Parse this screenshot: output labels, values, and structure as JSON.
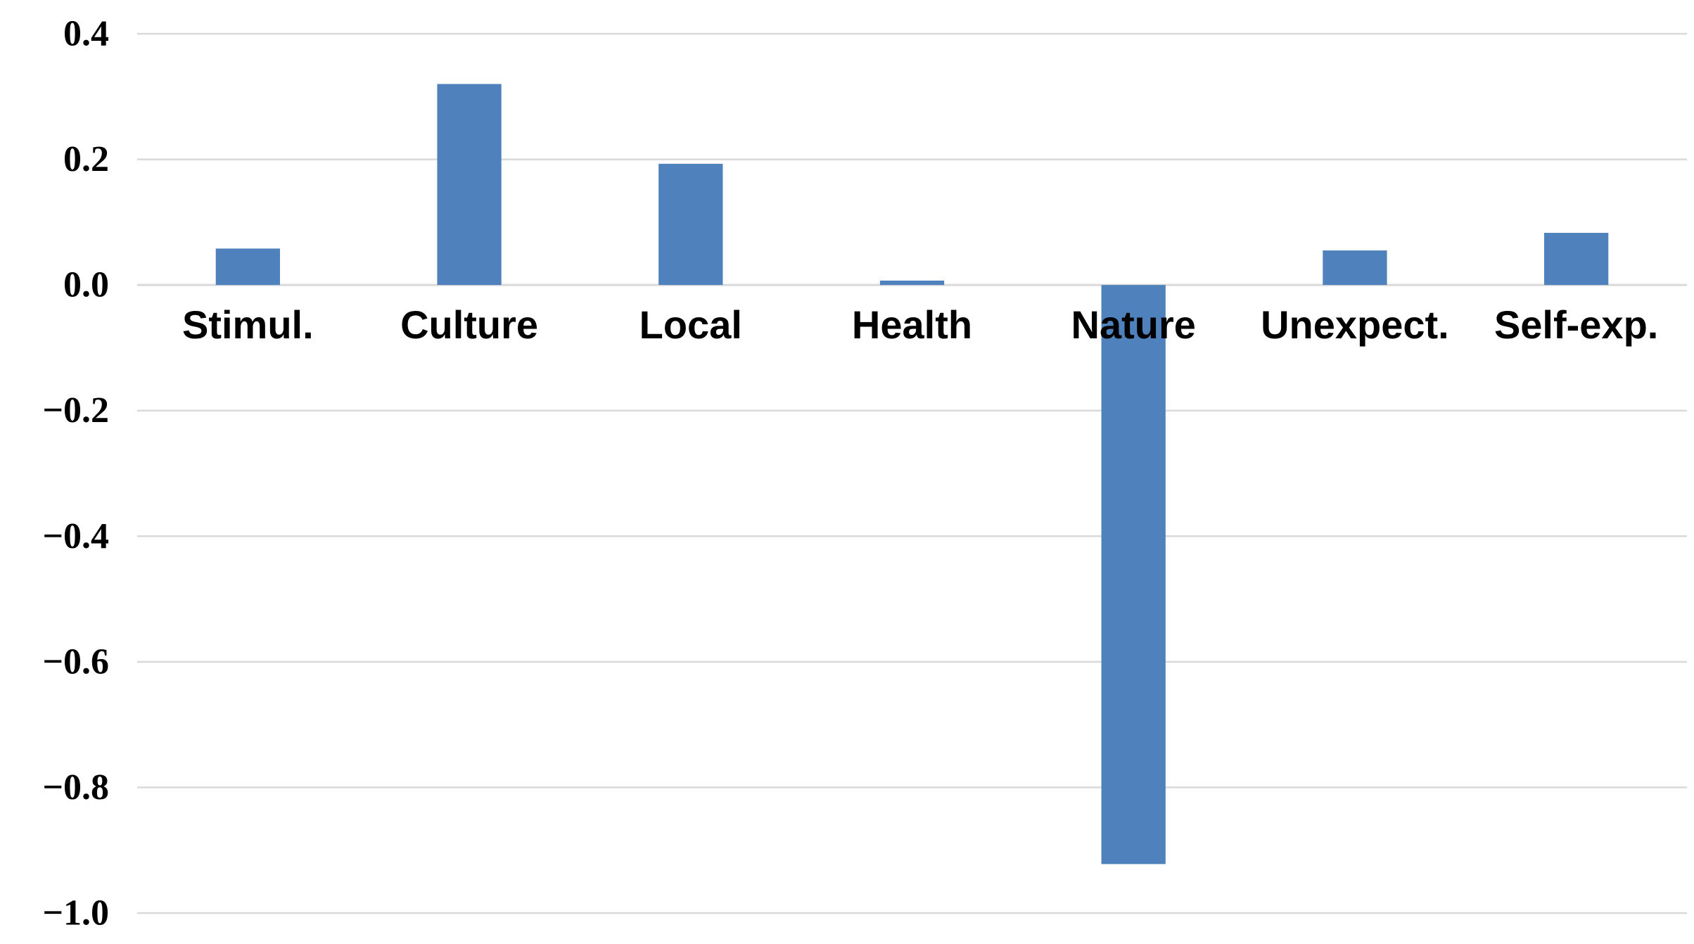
{
  "chart_data": {
    "type": "bar",
    "categories": [
      "Stimul.",
      "Culture",
      "Local",
      "Health",
      "Nature",
      "Unexpect.",
      "Self-exp."
    ],
    "values": [
      0.058,
      0.32,
      0.193,
      0.007,
      -0.922,
      0.055,
      0.083
    ],
    "ylim": [
      -1.0,
      0.4
    ],
    "yticks": [
      0.4,
      0.2,
      0.0,
      -0.2,
      -0.4,
      -0.6,
      -0.8,
      -1.0
    ],
    "ytick_labels": [
      "0.4",
      "0.2",
      "0.0",
      "−0.2",
      "−0.4",
      "−0.6",
      "−0.8",
      "−1.0"
    ],
    "title": "",
    "xlabel": "",
    "ylabel": "",
    "grid": true,
    "legend": "none",
    "bar_color": "#4f81bd",
    "grid_color": "#d9d9d9"
  }
}
